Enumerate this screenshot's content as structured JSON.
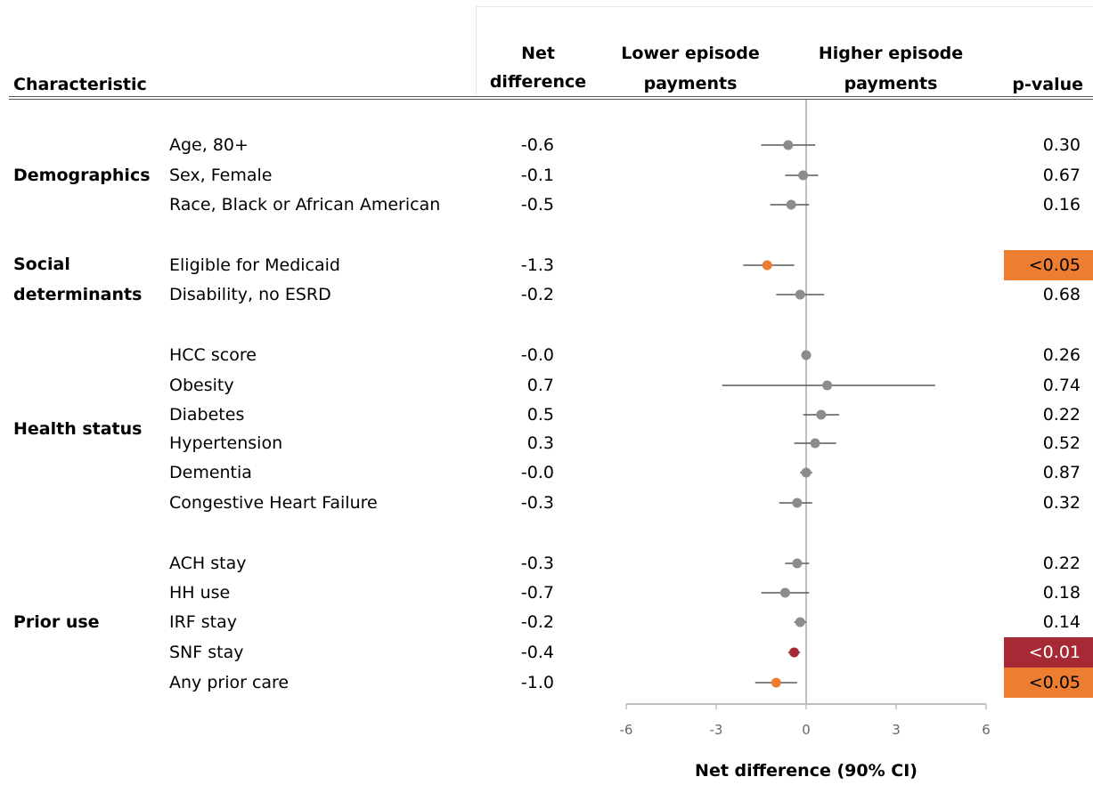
{
  "headers": {
    "characteristic": "Characteristic",
    "net_difference_1": "Net",
    "net_difference_2": "difference",
    "lower_1": "Lower episode",
    "lower_2": "payments",
    "higher_1": "Higher episode",
    "higher_2": "payments",
    "pvalue": "p-value"
  },
  "groups": [
    {
      "label_lines": [
        "Demographics"
      ],
      "rows": [
        0,
        1,
        2
      ]
    },
    {
      "label_lines": [
        "Social",
        "determinants"
      ],
      "rows": [
        3,
        4
      ]
    },
    {
      "label_lines": [
        "Health status"
      ],
      "rows": [
        5,
        6,
        7,
        8,
        9,
        10
      ]
    },
    {
      "label_lines": [
        "Prior use"
      ],
      "rows": [
        11,
        12,
        13,
        14,
        15
      ]
    }
  ],
  "colors": {
    "gray_point": "#8c8c8c",
    "ci_line": "#595959",
    "orange": "#ed7d31",
    "red": "#a52a36",
    "axis": "#bfbfbf"
  },
  "chart_data": {
    "type": "forest",
    "xlabel": "Net difference (90% CI)",
    "xlim": [
      -6,
      6
    ],
    "xticks": [
      -6,
      -3,
      0,
      3,
      6
    ],
    "rows": [
      {
        "label": "Age, 80+",
        "net": "-0.6",
        "value": -0.6,
        "lo": -1.5,
        "hi": 0.3,
        "p": "0.30",
        "sig": "none"
      },
      {
        "label": "Sex, Female",
        "net": "-0.1",
        "value": -0.1,
        "lo": -0.7,
        "hi": 0.4,
        "p": "0.67",
        "sig": "none"
      },
      {
        "label": "Race, Black or African American",
        "net": "-0.5",
        "value": -0.5,
        "lo": -1.2,
        "hi": 0.1,
        "p": "0.16",
        "sig": "none"
      },
      {
        "label": "Eligible for Medicaid",
        "net": "-1.3",
        "value": -1.3,
        "lo": -2.1,
        "hi": -0.4,
        "p": "<0.05",
        "sig": "p05"
      },
      {
        "label": "Disability, no ESRD",
        "net": "-0.2",
        "value": -0.2,
        "lo": -1.0,
        "hi": 0.6,
        "p": "0.68",
        "sig": "none"
      },
      {
        "label": "HCC score",
        "net": "-0.0",
        "value": 0.0,
        "lo": 0.0,
        "hi": 0.0,
        "p": "0.26",
        "sig": "none"
      },
      {
        "label": "Obesity",
        "net": "0.7",
        "value": 0.7,
        "lo": -2.8,
        "hi": 4.3,
        "p": "0.74",
        "sig": "none"
      },
      {
        "label": "Diabetes",
        "net": "0.5",
        "value": 0.5,
        "lo": -0.1,
        "hi": 1.1,
        "p": "0.22",
        "sig": "none"
      },
      {
        "label": "Hypertension",
        "net": "0.3",
        "value": 0.3,
        "lo": -0.4,
        "hi": 1.0,
        "p": "0.52",
        "sig": "none"
      },
      {
        "label": "Dementia",
        "net": "-0.0",
        "value": 0.0,
        "lo": -0.2,
        "hi": 0.2,
        "p": "0.87",
        "sig": "none"
      },
      {
        "label": "Congestive Heart Failure",
        "net": "-0.3",
        "value": -0.3,
        "lo": -0.9,
        "hi": 0.2,
        "p": "0.32",
        "sig": "none"
      },
      {
        "label": "ACH stay",
        "net": "-0.3",
        "value": -0.3,
        "lo": -0.7,
        "hi": 0.1,
        "p": "0.22",
        "sig": "none"
      },
      {
        "label": "HH use",
        "net": "-0.7",
        "value": -0.7,
        "lo": -1.5,
        "hi": 0.1,
        "p": "0.18",
        "sig": "none"
      },
      {
        "label": "IRF stay",
        "net": "-0.2",
        "value": -0.2,
        "lo": -0.4,
        "hi": 0.0,
        "p": "0.14",
        "sig": "none"
      },
      {
        "label": "SNF stay",
        "net": "-0.4",
        "value": -0.4,
        "lo": -0.6,
        "hi": -0.2,
        "p": "<0.01",
        "sig": "p01"
      },
      {
        "label": "Any prior care",
        "net": "-1.0",
        "value": -1.0,
        "lo": -1.7,
        "hi": -0.3,
        "p": "<0.05",
        "sig": "p05"
      }
    ]
  }
}
